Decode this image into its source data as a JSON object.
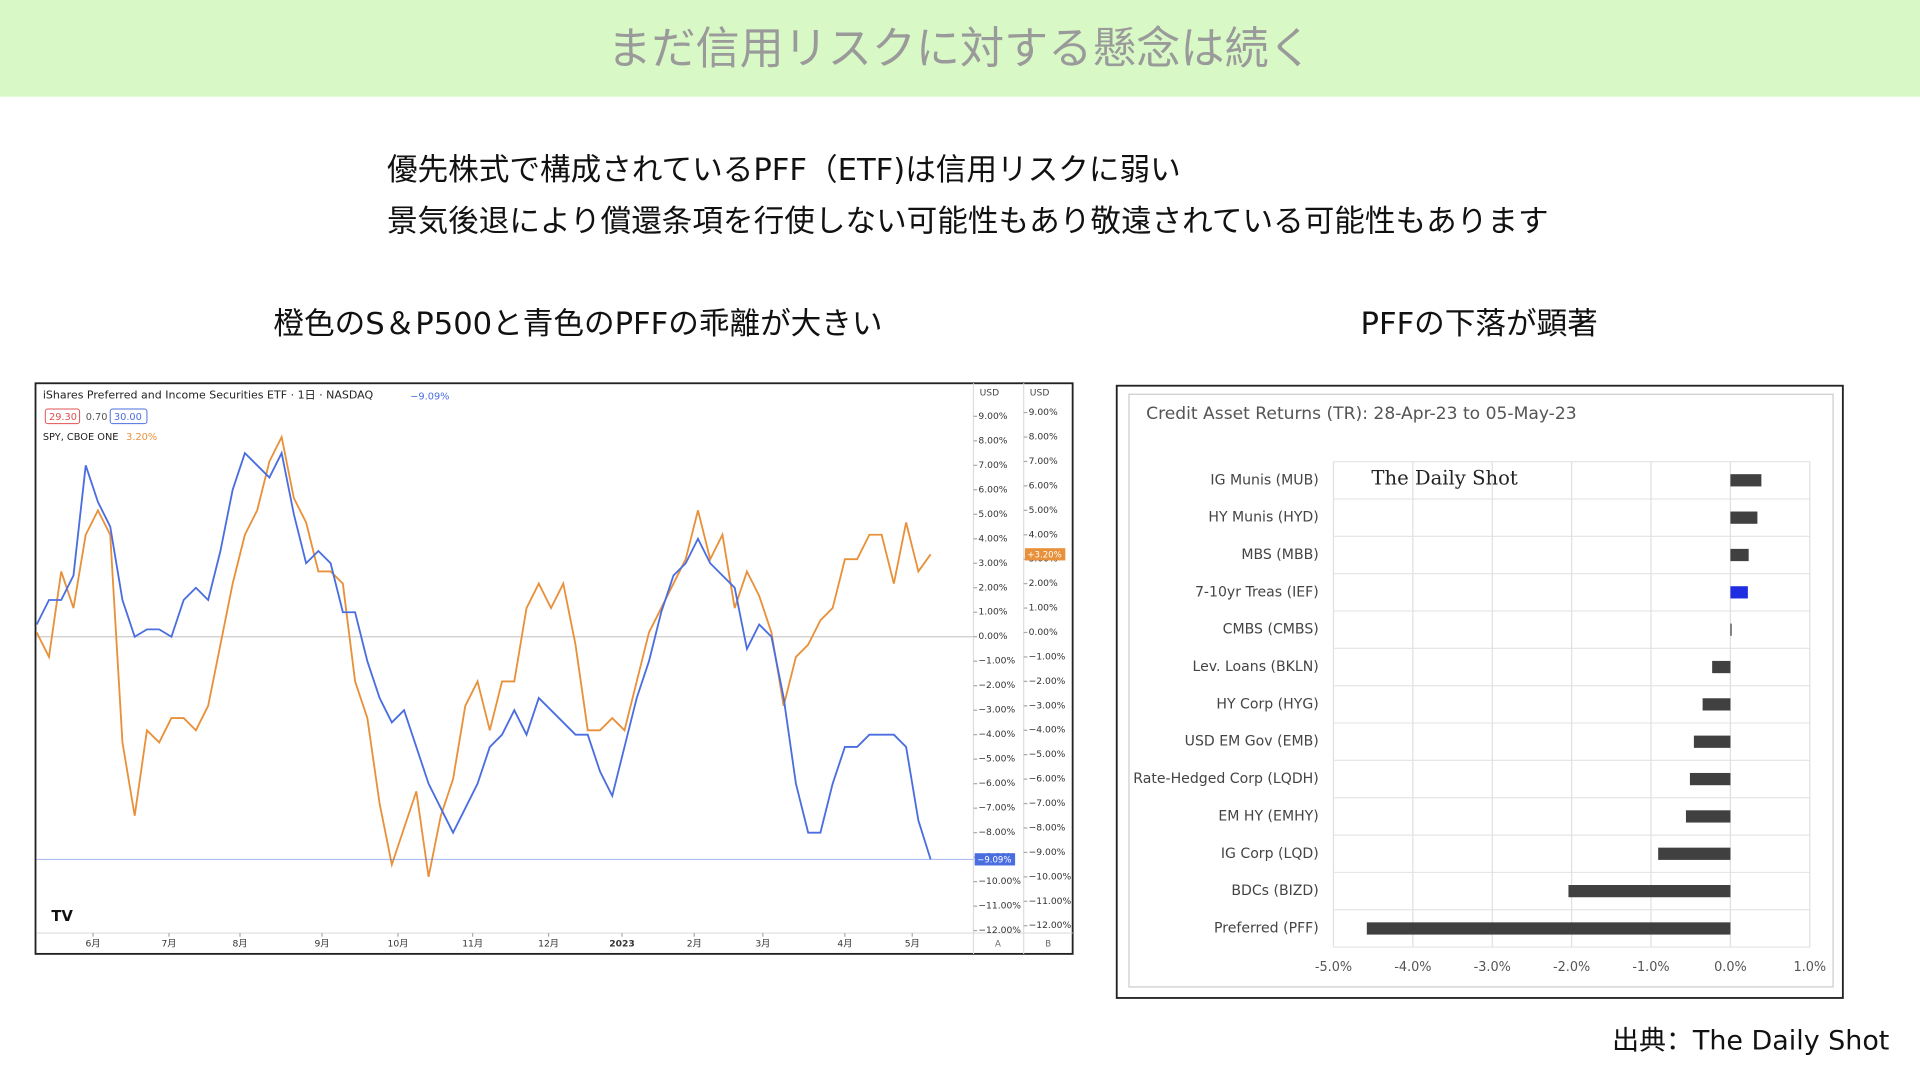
{
  "header": {
    "title": "まだ信用リスクに対する懸念は続く"
  },
  "bullets": [
    "優先株式で構成されているPFF（ETF)は信用リスクに弱い",
    "景気後退により償還条項を行使しない可能性もあり敬遠されている可能性もあります"
  ],
  "captions": [
    "橙色のS＆P500と青色のPFFの乖離が大きい",
    "PFFの下落が顕著"
  ],
  "source": "出典：The Daily Shot",
  "chart_data": [
    {
      "type": "line",
      "title": "iShares Preferred and Income Securities ETF · 1日 · NASDAQ",
      "price_labels": [
        "29.30",
        "0.70",
        "30.00"
      ],
      "axis_unit": "USD",
      "axis_names": [
        "A",
        "B"
      ],
      "x": [
        0,
        2,
        4,
        6,
        8,
        10,
        12,
        14,
        16,
        18,
        20,
        22,
        24,
        26,
        28,
        30,
        32,
        34,
        36,
        38,
        40,
        42,
        44,
        46,
        48,
        50,
        52,
        54,
        56,
        58,
        60,
        62,
        64,
        66,
        68,
        70,
        72,
        74,
        76,
        78,
        80,
        82,
        84,
        86,
        88,
        90,
        92,
        94,
        96,
        98,
        100,
        102,
        104,
        106,
        108,
        110,
        112,
        114,
        116,
        118,
        120,
        122,
        124,
        126,
        128,
        130,
        132,
        134,
        136,
        138,
        140,
        142,
        144,
        146
      ],
      "xlim": [
        0,
        153
      ],
      "xticks": [
        {
          "value": 9.2,
          "label": "6月"
        },
        {
          "value": 21.6,
          "label": "7月"
        },
        {
          "value": 33.2,
          "label": "8月"
        },
        {
          "value": 46.6,
          "label": "9月"
        },
        {
          "value": 59,
          "label": "10月"
        },
        {
          "value": 71.2,
          "label": "11月"
        },
        {
          "value": 83.6,
          "label": "12月"
        },
        {
          "value": 95.6,
          "label": "2023"
        },
        {
          "value": 107.4,
          "label": "2月"
        },
        {
          "value": 118.6,
          "label": "3月"
        },
        {
          "value": 132,
          "label": "4月"
        },
        {
          "value": 143,
          "label": "5月"
        }
      ],
      "ylim": [
        -12.15,
        10.35
      ],
      "yticks": [
        {
          "value": 9,
          "label": "9.00%"
        },
        {
          "value": 8,
          "label": "8.00%"
        },
        {
          "value": 7,
          "label": "7.00%"
        },
        {
          "value": 6,
          "label": "6.00%"
        },
        {
          "value": 5,
          "label": "5.00%"
        },
        {
          "value": 4,
          "label": "4.00%"
        },
        {
          "value": 3,
          "label": "3.00%"
        },
        {
          "value": 2,
          "label": "2.00%"
        },
        {
          "value": 1,
          "label": "1.00%"
        },
        {
          "value": 0,
          "label": "0.00%"
        },
        {
          "value": -1,
          "label": "−1.00%"
        },
        {
          "value": -2,
          "label": "−2.00%"
        },
        {
          "value": -3,
          "label": "−3.00%"
        },
        {
          "value": -4,
          "label": "−4.00%"
        },
        {
          "value": -5,
          "label": "−5.00%"
        },
        {
          "value": -6,
          "label": "−6.00%"
        },
        {
          "value": -7,
          "label": "−7.00%"
        },
        {
          "value": -8,
          "label": "−8.00%"
        },
        {
          "value": -9,
          "label": "−9.00%"
        },
        {
          "value": -10,
          "label": "−10.00%"
        },
        {
          "value": -11,
          "label": "−11.00%"
        },
        {
          "value": -12,
          "label": "−12.00%"
        }
      ],
      "y2lim": [
        -12.35,
        10.2
      ],
      "y2ticks": [
        {
          "value": 9,
          "label": "9.00%"
        },
        {
          "value": 8,
          "label": "8.00%"
        },
        {
          "value": 7,
          "label": "7.00%"
        },
        {
          "value": 6,
          "label": "6.00%"
        },
        {
          "value": 5,
          "label": "5.00%"
        },
        {
          "value": 4,
          "label": "4.00%"
        },
        {
          "value": 3,
          "label": "3.00%"
        },
        {
          "value": 2,
          "label": "2.00%"
        },
        {
          "value": 1,
          "label": "1.00%"
        },
        {
          "value": 0,
          "label": "0.00%"
        },
        {
          "value": -1,
          "label": "−1.00%"
        },
        {
          "value": -2,
          "label": "−2.00%"
        },
        {
          "value": -3,
          "label": "−3.00%"
        },
        {
          "value": -4,
          "label": "−4.00%"
        },
        {
          "value": -5,
          "label": "−5.00%"
        },
        {
          "value": -6,
          "label": "−6.00%"
        },
        {
          "value": -7,
          "label": "−7.00%"
        },
        {
          "value": -8,
          "label": "−8.00%"
        },
        {
          "value": -9,
          "label": "−9.00%"
        },
        {
          "value": -10,
          "label": "−10.00%"
        },
        {
          "value": -11,
          "label": "−11.00%"
        },
        {
          "value": -12,
          "label": "−12.00%"
        }
      ],
      "series": [
        {
          "name": "PFF",
          "color": "#4a6ee0",
          "axis": "y",
          "change_label": "−9.09%",
          "last_label": "−9.09%",
          "values": [
            0.5,
            1.5,
            1.5,
            2.5,
            7,
            5.5,
            4.5,
            1.5,
            0,
            0.3,
            0.3,
            0,
            1.5,
            2,
            1.5,
            3.5,
            6,
            7.5,
            7,
            6.5,
            7.5,
            5,
            3,
            3.5,
            3,
            1,
            1,
            -1,
            -2.5,
            -3.5,
            -3,
            -4.5,
            -6,
            -7,
            -8,
            -7,
            -6,
            -4.5,
            -4,
            -3,
            -4,
            -2.5,
            -3,
            -3.5,
            -4,
            -4,
            -5.5,
            -6.5,
            -4.5,
            -2.5,
            -1,
            1,
            2.5,
            3,
            4,
            3,
            2.5,
            2,
            -0.5,
            0.5,
            0,
            -2.5,
            -6,
            -8,
            -8,
            -6,
            -4.5,
            -4.5,
            -4,
            -4,
            -4,
            -4.5,
            -7.5,
            -9.09
          ]
        },
        {
          "name": "SPY, CBOE ONE",
          "color": "#e8913a",
          "axis": "y2",
          "change_label": "3.20%",
          "last_label": "+3.20%",
          "values": [
            0,
            -1,
            2.5,
            1,
            4,
            5,
            4,
            -4.5,
            -7.5,
            -4,
            -4.5,
            -3.5,
            -3.5,
            -4,
            -3,
            -0.5,
            2,
            4,
            5,
            7,
            8,
            5.5,
            4.5,
            2.5,
            2.5,
            2,
            -2,
            -3.5,
            -7,
            -9.5,
            -8,
            -6.5,
            -10,
            -7.5,
            -6,
            -3,
            -2,
            -4,
            -2,
            -2,
            1,
            2,
            1,
            2,
            -0.5,
            -4,
            -4,
            -3.5,
            -4,
            -2,
            0,
            1,
            2,
            3,
            5,
            3,
            4,
            1,
            2.5,
            1.5,
            0,
            -3,
            -1,
            -0.5,
            0.5,
            1,
            3,
            3,
            4,
            4,
            2,
            4.5,
            2.5,
            3.2
          ]
        }
      ]
    },
    {
      "type": "hbar",
      "title": "Credit Asset Returns (TR): 28-Apr-23 to 05-May-23",
      "watermark": "The Daily Shot",
      "categories": [
        "IG Munis (MUB)",
        "HY Munis (HYD)",
        "MBS (MBB)",
        "7-10yr Treas (IEF)",
        "CMBS (CMBS)",
        "Lev. Loans (BKLN)",
        "HY Corp (HYG)",
        "USD EM Gov (EMB)",
        "Rate-Hedged Corp (LQDH)",
        "EM HY (EMHY)",
        "IG Corp (LQD)",
        "BDCs (BIZD)",
        "Preferred (PFF)"
      ],
      "values": [
        0.39,
        0.34,
        0.23,
        0.22,
        0.01,
        -0.23,
        -0.35,
        -0.46,
        -0.51,
        -0.56,
        -0.91,
        -2.04,
        -4.58
      ],
      "colors": [
        "#404040",
        "#404040",
        "#404040",
        "#1f2ee0",
        "#404040",
        "#404040",
        "#404040",
        "#404040",
        "#404040",
        "#404040",
        "#404040",
        "#404040",
        "#404040"
      ],
      "xlim": [
        -5,
        1
      ],
      "xticks": [
        {
          "value": -5,
          "label": "-5.0%"
        },
        {
          "value": -4,
          "label": "-4.0%"
        },
        {
          "value": -3,
          "label": "-3.0%"
        },
        {
          "value": -2,
          "label": "-2.0%"
        },
        {
          "value": -1,
          "label": "-1.0%"
        },
        {
          "value": 0,
          "label": "0.0%"
        },
        {
          "value": 1,
          "label": "1.0%"
        }
      ],
      "grid": true
    }
  ]
}
